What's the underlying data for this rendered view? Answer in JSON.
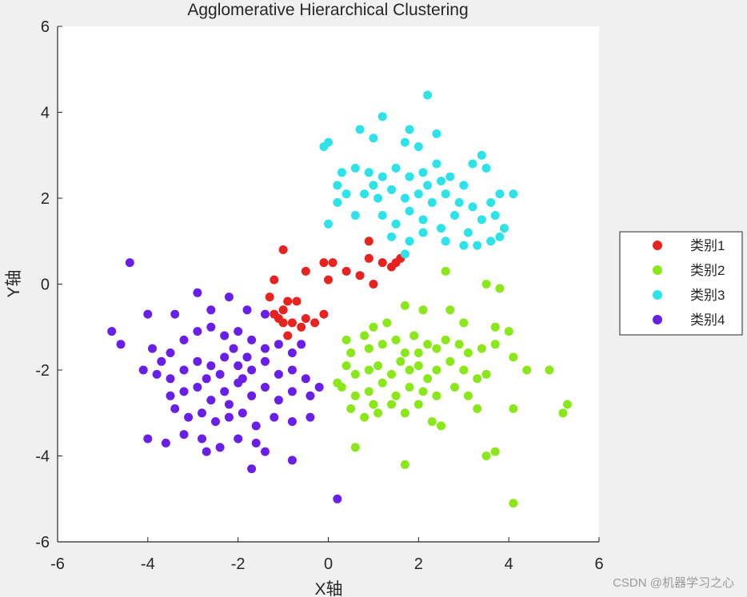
{
  "chart_data": {
    "type": "scatter",
    "title": "Agglomerative Hierarchical Clustering",
    "xlabel": "X轴",
    "ylabel": "Y轴",
    "xlim": [
      -6,
      6
    ],
    "ylim": [
      -6,
      6
    ],
    "xticks": [
      "-6",
      "-4",
      "-2",
      "0",
      "2",
      "4",
      "6"
    ],
    "yticks": [
      "6",
      "4",
      "2",
      "0",
      "-2",
      "-4",
      "-6"
    ],
    "xtick_values": [
      -6,
      -4,
      -2,
      0,
      2,
      4,
      6
    ],
    "ytick_values": [
      6,
      4,
      2,
      0,
      -2,
      -4,
      -6
    ],
    "grid": false,
    "legend_position": "right",
    "series": [
      {
        "name": "类别1",
        "color": "#e8231f",
        "points": [
          [
            -1.0,
            0.8
          ],
          [
            -1.2,
            0.1
          ],
          [
            -0.5,
            0.3
          ],
          [
            -0.1,
            0.5
          ],
          [
            0.1,
            0.5
          ],
          [
            0.4,
            0.3
          ],
          [
            0.7,
            0.2
          ],
          [
            0.9,
            0.6
          ],
          [
            1.0,
            0.0
          ],
          [
            1.4,
            0.4
          ],
          [
            1.5,
            0.5
          ],
          [
            1.6,
            0.6
          ],
          [
            0.0,
            0.1
          ],
          [
            -1.1,
            -0.8
          ],
          [
            -1.3,
            -0.3
          ],
          [
            -1.0,
            -0.6
          ],
          [
            -0.9,
            -0.4
          ],
          [
            -0.7,
            -0.4
          ],
          [
            -0.5,
            -0.8
          ],
          [
            -0.3,
            -0.9
          ],
          [
            -0.1,
            -0.7
          ],
          [
            -0.8,
            -0.9
          ],
          [
            -1.2,
            -0.7
          ],
          [
            -0.6,
            -1.0
          ],
          [
            -0.9,
            -1.2
          ],
          [
            -1.0,
            -0.9
          ],
          [
            0.9,
            1.0
          ],
          [
            1.2,
            0.5
          ]
        ]
      },
      {
        "name": "类别2",
        "color": "#8ae81a",
        "points": [
          [
            2.6,
            0.3
          ],
          [
            3.5,
            0.0
          ],
          [
            3.8,
            -0.1
          ],
          [
            1.7,
            -0.5
          ],
          [
            2.1,
            -0.6
          ],
          [
            2.7,
            -0.6
          ],
          [
            3.0,
            -0.9
          ],
          [
            3.7,
            -1.0
          ],
          [
            4.0,
            -1.1
          ],
          [
            1.3,
            -0.9
          ],
          [
            1.0,
            -1.0
          ],
          [
            0.8,
            -1.2
          ],
          [
            0.4,
            -1.3
          ],
          [
            0.5,
            -1.6
          ],
          [
            0.9,
            -1.5
          ],
          [
            1.2,
            -1.4
          ],
          [
            1.5,
            -1.3
          ],
          [
            1.7,
            -1.6
          ],
          [
            1.9,
            -1.2
          ],
          [
            2.2,
            -1.4
          ],
          [
            2.4,
            -1.5
          ],
          [
            2.6,
            -1.3
          ],
          [
            2.9,
            -1.4
          ],
          [
            3.1,
            -1.6
          ],
          [
            3.4,
            -1.5
          ],
          [
            3.7,
            -1.4
          ],
          [
            4.1,
            -1.7
          ],
          [
            4.4,
            -2.0
          ],
          [
            4.9,
            -2.0
          ],
          [
            0.6,
            -2.1
          ],
          [
            0.9,
            -2.0
          ],
          [
            1.1,
            -1.9
          ],
          [
            1.4,
            -2.1
          ],
          [
            1.6,
            -1.8
          ],
          [
            1.8,
            -2.0
          ],
          [
            2.0,
            -1.9
          ],
          [
            2.2,
            -2.2
          ],
          [
            2.4,
            -2.0
          ],
          [
            2.7,
            -1.8
          ],
          [
            3.0,
            -2.0
          ],
          [
            3.3,
            -2.2
          ],
          [
            3.5,
            -2.1
          ],
          [
            0.3,
            -2.4
          ],
          [
            0.6,
            -2.6
          ],
          [
            0.9,
            -2.5
          ],
          [
            1.2,
            -2.3
          ],
          [
            1.5,
            -2.6
          ],
          [
            1.8,
            -2.4
          ],
          [
            2.1,
            -2.5
          ],
          [
            2.4,
            -2.6
          ],
          [
            2.8,
            -2.4
          ],
          [
            3.1,
            -2.6
          ],
          [
            3.3,
            -2.9
          ],
          [
            0.5,
            -2.9
          ],
          [
            0.8,
            -3.1
          ],
          [
            1.1,
            -3.0
          ],
          [
            1.4,
            -2.8
          ],
          [
            1.7,
            -3.0
          ],
          [
            2.0,
            -2.8
          ],
          [
            2.3,
            -3.2
          ],
          [
            2.5,
            -3.3
          ],
          [
            0.6,
            -3.8
          ],
          [
            1.7,
            -4.2
          ],
          [
            3.5,
            -4.0
          ],
          [
            3.7,
            -3.9
          ],
          [
            4.1,
            -2.9
          ],
          [
            5.2,
            -3.0
          ],
          [
            5.3,
            -2.8
          ],
          [
            4.1,
            -5.1
          ],
          [
            0.2,
            -2.3
          ],
          [
            0.4,
            -1.9
          ],
          [
            2.0,
            -1.6
          ],
          [
            1.0,
            -2.8
          ]
        ]
      },
      {
        "name": "类别3",
        "color": "#2ee3e8",
        "points": [
          [
            2.2,
            4.4
          ],
          [
            1.2,
            3.9
          ],
          [
            1.8,
            3.6
          ],
          [
            2.4,
            3.5
          ],
          [
            0.7,
            3.6
          ],
          [
            1.0,
            3.4
          ],
          [
            1.7,
            3.3
          ],
          [
            2.0,
            3.2
          ],
          [
            3.4,
            3.0
          ],
          [
            0.0,
            3.3
          ],
          [
            -0.1,
            3.2
          ],
          [
            3.2,
            2.8
          ],
          [
            3.5,
            2.7
          ],
          [
            0.6,
            2.7
          ],
          [
            0.9,
            2.6
          ],
          [
            1.2,
            2.5
          ],
          [
            1.5,
            2.7
          ],
          [
            1.8,
            2.5
          ],
          [
            2.1,
            2.6
          ],
          [
            2.4,
            2.8
          ],
          [
            2.7,
            2.5
          ],
          [
            3.0,
            2.3
          ],
          [
            0.2,
            2.3
          ],
          [
            0.4,
            2.1
          ],
          [
            0.8,
            2.1
          ],
          [
            1.1,
            2.0
          ],
          [
            1.4,
            2.2
          ],
          [
            1.7,
            2.0
          ],
          [
            2.0,
            2.1
          ],
          [
            2.3,
            1.9
          ],
          [
            2.6,
            2.1
          ],
          [
            2.9,
            1.9
          ],
          [
            3.2,
            1.8
          ],
          [
            3.6,
            1.9
          ],
          [
            3.8,
            2.1
          ],
          [
            4.1,
            2.1
          ],
          [
            0.2,
            1.9
          ],
          [
            0.6,
            1.6
          ],
          [
            1.2,
            1.6
          ],
          [
            1.5,
            1.4
          ],
          [
            1.8,
            1.7
          ],
          [
            2.1,
            1.5
          ],
          [
            2.5,
            1.3
          ],
          [
            2.8,
            1.6
          ],
          [
            3.1,
            1.2
          ],
          [
            3.4,
            1.5
          ],
          [
            3.7,
            1.6
          ],
          [
            3.9,
            1.3
          ],
          [
            1.4,
            1.1
          ],
          [
            1.8,
            1.0
          ],
          [
            2.1,
            1.2
          ],
          [
            2.6,
            1.0
          ],
          [
            3.0,
            0.9
          ],
          [
            3.3,
            0.9
          ],
          [
            3.6,
            1.0
          ],
          [
            3.8,
            1.1
          ],
          [
            0.0,
            1.4
          ],
          [
            1.7,
            0.7
          ],
          [
            2.2,
            2.3
          ],
          [
            2.5,
            2.4
          ],
          [
            0.3,
            2.6
          ],
          [
            1.0,
            2.3
          ]
        ]
      },
      {
        "name": "类别4",
        "color": "#6a1fe8",
        "points": [
          [
            -4.4,
            0.5
          ],
          [
            -2.9,
            -0.2
          ],
          [
            -4.0,
            -0.7
          ],
          [
            -3.4,
            -0.7
          ],
          [
            -2.6,
            -0.6
          ],
          [
            -2.2,
            -0.3
          ],
          [
            -1.8,
            -0.6
          ],
          [
            -1.4,
            -0.7
          ],
          [
            -4.8,
            -1.1
          ],
          [
            -4.6,
            -1.4
          ],
          [
            -3.9,
            -1.5
          ],
          [
            -3.7,
            -1.8
          ],
          [
            -3.5,
            -1.6
          ],
          [
            -3.2,
            -1.3
          ],
          [
            -2.9,
            -1.1
          ],
          [
            -2.6,
            -1.0
          ],
          [
            -2.3,
            -1.2
          ],
          [
            -2.0,
            -1.1
          ],
          [
            -1.7,
            -1.3
          ],
          [
            -1.4,
            -1.5
          ],
          [
            -1.1,
            -1.4
          ],
          [
            -0.8,
            -1.6
          ],
          [
            -0.6,
            -1.4
          ],
          [
            -4.1,
            -2.0
          ],
          [
            -3.8,
            -2.1
          ],
          [
            -3.5,
            -2.2
          ],
          [
            -3.2,
            -2.0
          ],
          [
            -2.9,
            -1.8
          ],
          [
            -2.6,
            -1.9
          ],
          [
            -2.3,
            -1.7
          ],
          [
            -2.0,
            -1.9
          ],
          [
            -1.7,
            -2.0
          ],
          [
            -1.4,
            -1.8
          ],
          [
            -1.1,
            -2.1
          ],
          [
            -0.8,
            -2.0
          ],
          [
            -0.5,
            -2.2
          ],
          [
            -3.5,
            -2.6
          ],
          [
            -3.2,
            -2.5
          ],
          [
            -2.9,
            -2.4
          ],
          [
            -2.6,
            -2.7
          ],
          [
            -2.3,
            -2.5
          ],
          [
            -2.0,
            -2.3
          ],
          [
            -1.7,
            -2.6
          ],
          [
            -1.4,
            -2.4
          ],
          [
            -1.1,
            -2.7
          ],
          [
            -0.8,
            -2.5
          ],
          [
            -0.4,
            -2.6
          ],
          [
            -0.2,
            -2.4
          ],
          [
            -3.4,
            -2.9
          ],
          [
            -3.1,
            -3.1
          ],
          [
            -2.8,
            -3.0
          ],
          [
            -2.5,
            -3.2
          ],
          [
            -2.2,
            -3.1
          ],
          [
            -1.9,
            -3.0
          ],
          [
            -1.6,
            -3.3
          ],
          [
            -1.2,
            -3.1
          ],
          [
            -0.8,
            -3.2
          ],
          [
            -0.4,
            -3.1
          ],
          [
            -4.0,
            -3.6
          ],
          [
            -3.6,
            -3.7
          ],
          [
            -3.2,
            -3.5
          ],
          [
            -2.8,
            -3.6
          ],
          [
            -2.4,
            -3.8
          ],
          [
            -2.0,
            -3.6
          ],
          [
            -1.6,
            -3.7
          ],
          [
            -1.4,
            -3.9
          ],
          [
            -2.7,
            -3.9
          ],
          [
            -1.7,
            -4.3
          ],
          [
            -0.8,
            -4.1
          ],
          [
            0.2,
            -5.0
          ],
          [
            -2.1,
            -1.5
          ],
          [
            -1.9,
            -2.2
          ],
          [
            -2.4,
            -2.1
          ],
          [
            -2.2,
            -2.8
          ],
          [
            -1.8,
            -1.7
          ],
          [
            -2.7,
            -2.2
          ]
        ]
      }
    ]
  },
  "watermark": "CSDN @机器学习之心"
}
